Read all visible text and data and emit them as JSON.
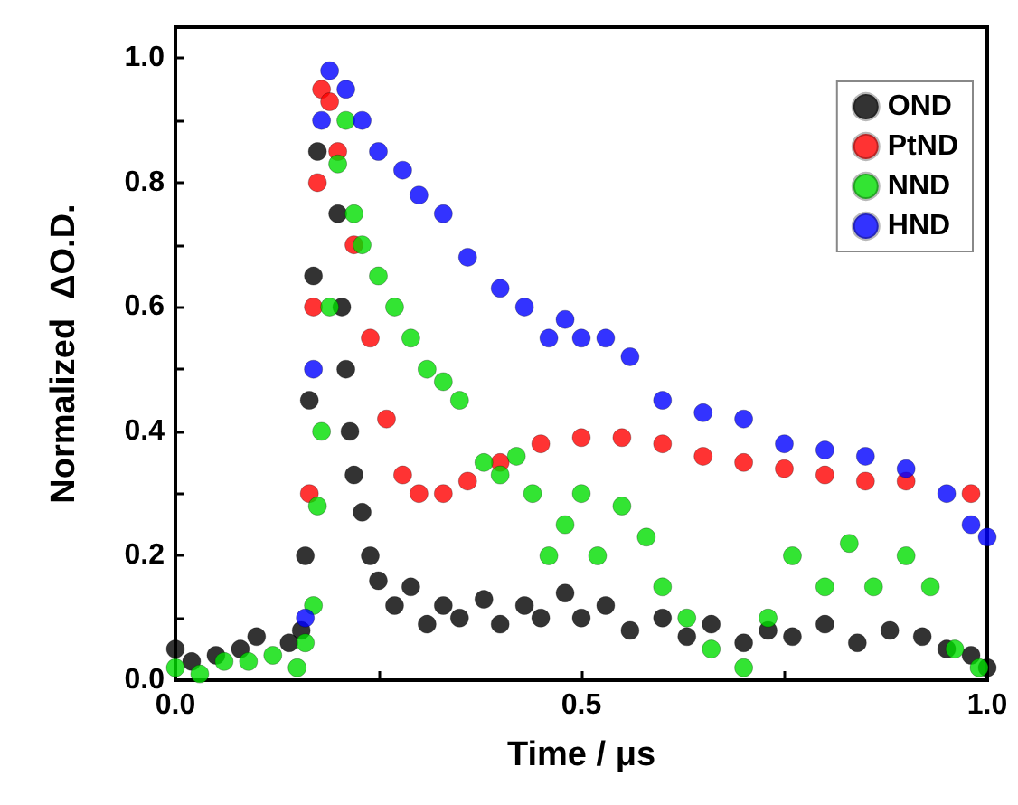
{
  "chart_data": {
    "type": "scatter",
    "xlabel": "Time / μs",
    "ylabel": "Normalized  ΔO.D.",
    "xlim": [
      0,
      1
    ],
    "ylim": [
      0,
      1.05
    ],
    "xticks": [
      {
        "value": 0,
        "label": "0.0"
      },
      {
        "value": 0.25,
        "label": null
      },
      {
        "value": 0.5,
        "label": "0.5"
      },
      {
        "value": 0.75,
        "label": null
      },
      {
        "value": 1,
        "label": "1.0"
      }
    ],
    "yticks": [
      {
        "value": 0,
        "label": "0.0"
      },
      {
        "value": 0.1,
        "label": null
      },
      {
        "value": 0.2,
        "label": "0.2"
      },
      {
        "value": 0.3,
        "label": null
      },
      {
        "value": 0.4,
        "label": "0.4"
      },
      {
        "value": 0.5,
        "label": null
      },
      {
        "value": 0.6,
        "label": "0.6"
      },
      {
        "value": 0.7,
        "label": null
      },
      {
        "value": 0.8,
        "label": "0.8"
      },
      {
        "value": 0.9,
        "label": null
      },
      {
        "value": 1,
        "label": "1.0"
      }
    ],
    "grid": false,
    "legend": "top right",
    "marker": "circle",
    "series": [
      {
        "name": "OND",
        "color": "#000000",
        "x": [
          0.0,
          0.02,
          0.05,
          0.08,
          0.1,
          0.14,
          0.155,
          0.16,
          0.165,
          0.17,
          0.175,
          0.2,
          0.205,
          0.21,
          0.215,
          0.22,
          0.23,
          0.24,
          0.25,
          0.27,
          0.29,
          0.31,
          0.33,
          0.35,
          0.38,
          0.4,
          0.43,
          0.45,
          0.48,
          0.5,
          0.53,
          0.56,
          0.6,
          0.63,
          0.66,
          0.7,
          0.73,
          0.76,
          0.8,
          0.84,
          0.88,
          0.92,
          0.95,
          0.98,
          1.0
        ],
        "values": [
          0.05,
          0.03,
          0.04,
          0.05,
          0.07,
          0.06,
          0.08,
          0.2,
          0.45,
          0.65,
          0.85,
          0.75,
          0.6,
          0.5,
          0.4,
          0.33,
          0.27,
          0.2,
          0.16,
          0.12,
          0.15,
          0.09,
          0.12,
          0.1,
          0.13,
          0.09,
          0.12,
          0.1,
          0.14,
          0.1,
          0.12,
          0.08,
          0.1,
          0.07,
          0.09,
          0.06,
          0.08,
          0.07,
          0.09,
          0.06,
          0.08,
          0.07,
          0.05,
          0.04,
          0.02
        ]
      },
      {
        "name": "PtND",
        "color": "#ff0000",
        "x": [
          0.165,
          0.17,
          0.175,
          0.18,
          0.19,
          0.2,
          0.22,
          0.24,
          0.26,
          0.28,
          0.3,
          0.33,
          0.36,
          0.4,
          0.45,
          0.5,
          0.55,
          0.6,
          0.65,
          0.7,
          0.75,
          0.8,
          0.85,
          0.9,
          0.98
        ],
        "values": [
          0.3,
          0.6,
          0.8,
          0.95,
          0.93,
          0.85,
          0.7,
          0.55,
          0.42,
          0.33,
          0.3,
          0.3,
          0.32,
          0.35,
          0.38,
          0.39,
          0.39,
          0.38,
          0.36,
          0.35,
          0.34,
          0.33,
          0.32,
          0.32,
          0.3
        ]
      },
      {
        "name": "NND",
        "color": "#00dd00",
        "x": [
          0.0,
          0.03,
          0.06,
          0.09,
          0.12,
          0.15,
          0.16,
          0.17,
          0.175,
          0.18,
          0.19,
          0.2,
          0.21,
          0.22,
          0.23,
          0.25,
          0.27,
          0.29,
          0.31,
          0.33,
          0.35,
          0.38,
          0.4,
          0.42,
          0.44,
          0.46,
          0.48,
          0.5,
          0.52,
          0.55,
          0.58,
          0.6,
          0.63,
          0.66,
          0.7,
          0.73,
          0.76,
          0.8,
          0.83,
          0.86,
          0.9,
          0.93,
          0.96,
          0.99
        ],
        "values": [
          0.02,
          0.01,
          0.03,
          0.03,
          0.04,
          0.02,
          0.06,
          0.12,
          0.28,
          0.4,
          0.6,
          0.83,
          0.9,
          0.75,
          0.7,
          0.65,
          0.6,
          0.55,
          0.5,
          0.48,
          0.45,
          0.35,
          0.33,
          0.36,
          0.3,
          0.2,
          0.25,
          0.3,
          0.2,
          0.28,
          0.23,
          0.15,
          0.1,
          0.05,
          0.02,
          0.1,
          0.2,
          0.15,
          0.22,
          0.15,
          0.2,
          0.15,
          0.05,
          0.02
        ]
      },
      {
        "name": "HND",
        "color": "#0000ff",
        "x": [
          0.16,
          0.17,
          0.18,
          0.19,
          0.21,
          0.23,
          0.25,
          0.28,
          0.3,
          0.33,
          0.36,
          0.4,
          0.43,
          0.46,
          0.48,
          0.5,
          0.53,
          0.56,
          0.6,
          0.65,
          0.7,
          0.75,
          0.8,
          0.85,
          0.9,
          0.95,
          0.98,
          1.0
        ],
        "values": [
          0.1,
          0.5,
          0.9,
          0.98,
          0.95,
          0.9,
          0.85,
          0.82,
          0.78,
          0.75,
          0.68,
          0.63,
          0.6,
          0.55,
          0.58,
          0.55,
          0.55,
          0.52,
          0.45,
          0.43,
          0.42,
          0.38,
          0.37,
          0.36,
          0.34,
          0.3,
          0.25,
          0.23
        ]
      }
    ]
  }
}
